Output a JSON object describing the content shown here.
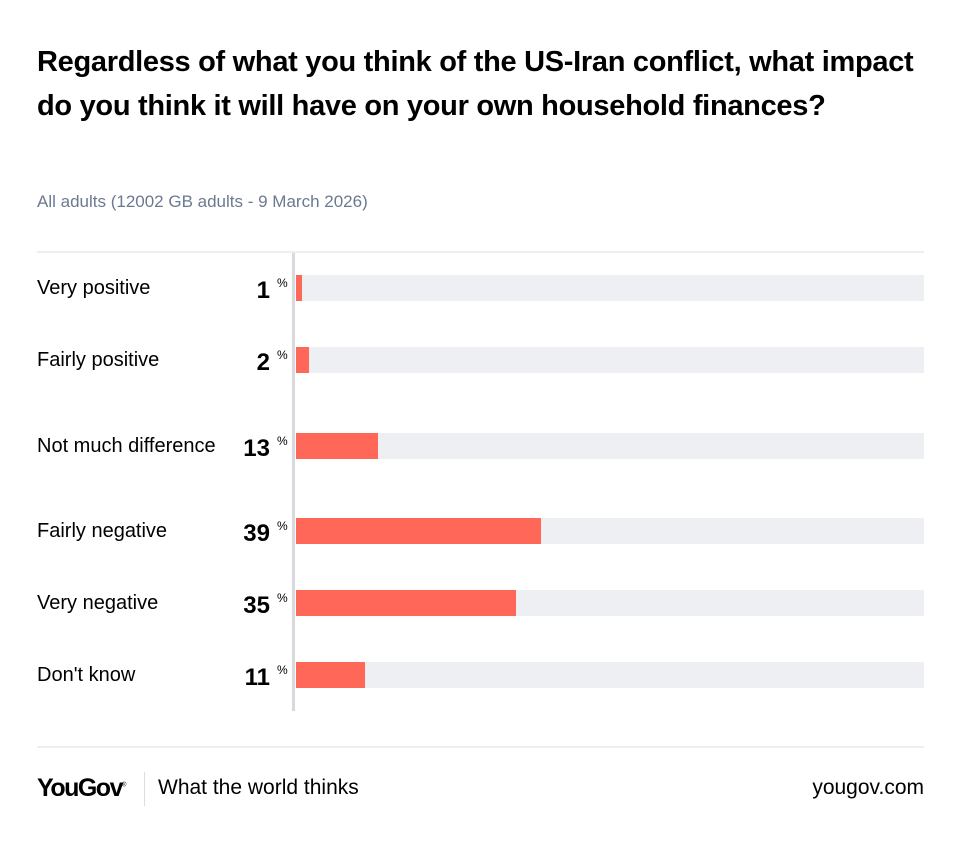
{
  "chart_data": {
    "type": "bar",
    "orientation": "horizontal",
    "title": "Regardless of what you think of the US-Iran conflict, what impact do you think it will have on your own household finances?",
    "subtitle": "All adults (12002 GB adults - 9 March 2026)",
    "categories": [
      "Very positive",
      "Fairly positive",
      "Not much difference",
      "Fairly negative",
      "Very negative",
      "Don't know"
    ],
    "values": [
      1,
      2,
      13,
      39,
      35,
      11
    ],
    "unit": "%",
    "xlim": [
      0,
      100
    ],
    "colors": {
      "bar": "#ff6859",
      "track": "#eeeff3"
    }
  },
  "footer": {
    "logo": "YouGov",
    "tagline": "What the world thinks",
    "site": "yougov.com"
  }
}
